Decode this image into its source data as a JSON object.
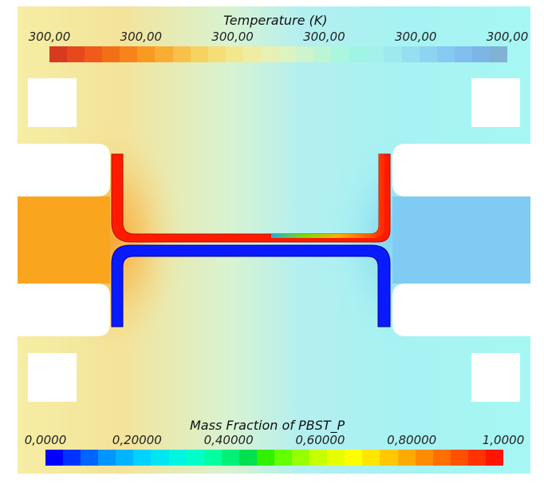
{
  "temperature_legend": {
    "title": "Temperature (K)",
    "ticks": [
      "300,00",
      "300,00",
      "300,00",
      "300,00",
      "300,00",
      "300,00"
    ],
    "colors": [
      "#d73a1c",
      "#e8491c",
      "#f05a1a",
      "#f36f17",
      "#f7841a",
      "#f89a22",
      "#f9ae33",
      "#f8c04a",
      "#f7d260",
      "#f5de78",
      "#f3e78e",
      "#f0eda2",
      "#e9f0b3",
      "#ddf3c0",
      "#cdf4cc",
      "#bcf5d6",
      "#abf6de",
      "#9ff5e4",
      "#a3f1ea",
      "#9ce9ee",
      "#95dff1",
      "#8dd4f3",
      "#86c9f3",
      "#80bef0",
      "#7cb5e6",
      "#7fb2d4"
    ]
  },
  "mass_fraction_legend": {
    "title": "Mass Fraction of PBST_P",
    "ticks": [
      "0,0000",
      "0,20000",
      "0,40000",
      "0,60000",
      "0,80000",
      "1,0000"
    ],
    "colors": [
      "#0000ff",
      "#0032ff",
      "#0064ff",
      "#0096ff",
      "#00b4ff",
      "#00d2ff",
      "#00e6f0",
      "#00f5e0",
      "#00ffc8",
      "#00ffa0",
      "#00f078",
      "#00e050",
      "#32f000",
      "#64ff00",
      "#96ff00",
      "#c8ff00",
      "#e6ff00",
      "#ffff00",
      "#ffe600",
      "#ffc800",
      "#ffaa00",
      "#ff8c00",
      "#ff6e00",
      "#ff5000",
      "#ff3200",
      "#ff1400"
    ]
  },
  "field_colors": {
    "hot_outlet": "#f9a51d",
    "cold_outlet": "#80cbf4",
    "hot_tube": "#ff1a00",
    "cold_tube": "#0a1aff",
    "background_left": "#f4eaa0",
    "background_right": "#a8f5f2"
  }
}
